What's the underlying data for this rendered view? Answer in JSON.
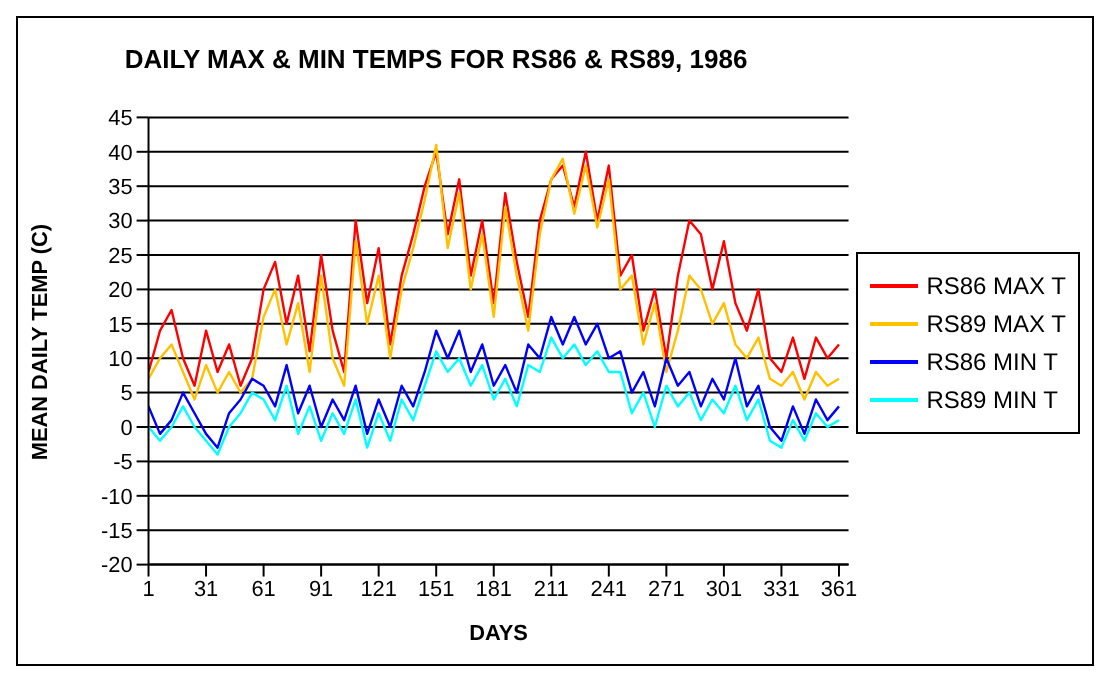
{
  "chart_data": {
    "type": "line",
    "title": "DAILY MAX & MIN TEMPS FOR RS86 & RS89, 1986",
    "xlabel": "DAYS",
    "ylabel": "MEAN DAILY TEMP (C)",
    "x": [
      1,
      7,
      13,
      19,
      25,
      31,
      37,
      43,
      49,
      55,
      61,
      67,
      73,
      79,
      85,
      91,
      97,
      103,
      109,
      115,
      121,
      127,
      133,
      139,
      145,
      151,
      157,
      163,
      169,
      175,
      181,
      187,
      193,
      199,
      205,
      211,
      217,
      223,
      229,
      235,
      241,
      247,
      253,
      259,
      265,
      271,
      277,
      283,
      289,
      295,
      301,
      307,
      313,
      319,
      325,
      331,
      337,
      343,
      349,
      355,
      361
    ],
    "series": [
      {
        "name": "RS86 MAX T",
        "color": "#ff0000",
        "values": [
          8,
          14,
          17,
          10,
          6,
          14,
          8,
          12,
          6,
          10,
          20,
          24,
          15,
          22,
          11,
          25,
          14,
          8,
          30,
          18,
          26,
          12,
          22,
          28,
          35,
          40,
          28,
          36,
          22,
          30,
          18,
          34,
          24,
          16,
          30,
          36,
          38,
          32,
          40,
          30,
          38,
          22,
          25,
          14,
          20,
          10,
          22,
          30,
          28,
          20,
          27,
          18,
          14,
          20,
          10,
          8,
          13,
          7,
          13,
          10,
          12
        ]
      },
      {
        "name": "RS89 MAX T",
        "color": "#ffc000",
        "values": [
          7,
          10,
          12,
          8,
          4,
          9,
          5,
          8,
          5,
          7,
          16,
          20,
          12,
          18,
          8,
          22,
          10,
          6,
          27,
          15,
          22,
          10,
          20,
          26,
          33,
          41,
          26,
          34,
          20,
          28,
          16,
          32,
          22,
          14,
          28,
          36,
          39,
          31,
          38,
          29,
          36,
          20,
          22,
          12,
          18,
          8,
          14,
          22,
          20,
          15,
          18,
          12,
          10,
          13,
          7,
          6,
          8,
          4,
          8,
          6,
          7
        ]
      },
      {
        "name": "RS86 MIN T",
        "color": "#0000ff",
        "values": [
          3,
          -1,
          1,
          5,
          2,
          -1,
          -3,
          2,
          4,
          7,
          6,
          3,
          9,
          2,
          6,
          0,
          4,
          1,
          6,
          -1,
          4,
          0,
          6,
          3,
          8,
          14,
          10,
          14,
          8,
          12,
          6,
          9,
          5,
          12,
          10,
          16,
          12,
          16,
          12,
          15,
          10,
          11,
          5,
          8,
          3,
          10,
          6,
          8,
          3,
          7,
          4,
          10,
          3,
          6,
          0,
          -2,
          3,
          -1,
          4,
          1,
          3
        ]
      },
      {
        "name": "RS89 MIN T",
        "color": "#00ffff",
        "values": [
          0,
          -2,
          0,
          3,
          0,
          -2,
          -4,
          0,
          2,
          5,
          4,
          1,
          6,
          -1,
          3,
          -2,
          2,
          -1,
          4,
          -3,
          2,
          -2,
          4,
          1,
          6,
          11,
          8,
          10,
          6,
          9,
          4,
          7,
          3,
          9,
          8,
          13,
          10,
          12,
          9,
          11,
          8,
          8,
          2,
          5,
          0,
          6,
          3,
          5,
          1,
          4,
          2,
          6,
          1,
          4,
          -2,
          -3,
          1,
          -2,
          2,
          0,
          1
        ]
      }
    ],
    "xlim": [
      1,
      366
    ],
    "xticks": [
      1,
      31,
      61,
      91,
      121,
      151,
      181,
      211,
      241,
      271,
      301,
      331,
      361
    ],
    "ylim": [
      -20,
      45
    ],
    "yticks": [
      -20,
      -15,
      -10,
      -5,
      0,
      5,
      10,
      15,
      20,
      25,
      30,
      35,
      40,
      45
    ],
    "grid": "y",
    "legend": "right",
    "marker": "none",
    "line_style": "solid"
  }
}
